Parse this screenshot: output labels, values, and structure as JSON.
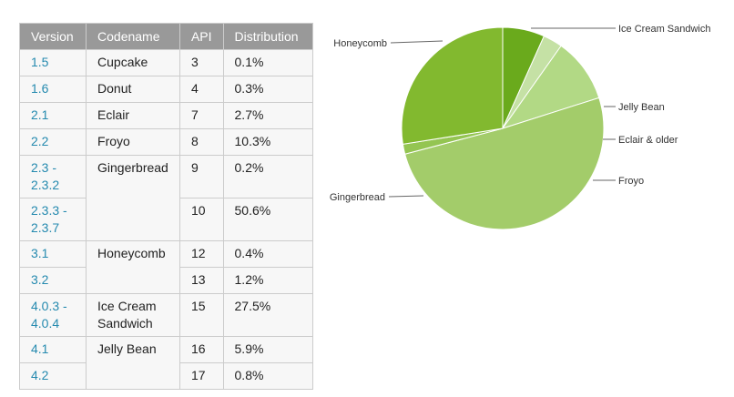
{
  "table": {
    "headers": [
      "Version",
      "Codename",
      "API",
      "Distribution"
    ],
    "rows": [
      {
        "version": "1.5",
        "codename": "Cupcake",
        "api": "3",
        "distribution": "0.1%"
      },
      {
        "version": "1.6",
        "codename": "Donut",
        "api": "4",
        "distribution": "0.3%"
      },
      {
        "version": "2.1",
        "codename": "Eclair",
        "api": "7",
        "distribution": "2.7%"
      },
      {
        "version": "2.2",
        "codename": "Froyo",
        "api": "8",
        "distribution": "10.3%"
      },
      {
        "version": "2.3 - 2.3.2",
        "codename": "Gingerbread",
        "api": "9",
        "distribution": "0.2%"
      },
      {
        "version": "2.3.3 - 2.3.7",
        "codename": "",
        "api": "10",
        "distribution": "50.6%"
      },
      {
        "version": "3.1",
        "codename": "Honeycomb",
        "api": "12",
        "distribution": "0.4%"
      },
      {
        "version": "3.2",
        "codename": "",
        "api": "13",
        "distribution": "1.2%"
      },
      {
        "version": "4.0.3 - 4.0.4",
        "codename": "Ice Cream Sandwich",
        "api": "15",
        "distribution": "27.5%"
      },
      {
        "version": "4.1",
        "codename": "Jelly Bean",
        "api": "16",
        "distribution": "5.9%"
      },
      {
        "version": "4.2",
        "codename": "",
        "api": "17",
        "distribution": "0.8%"
      }
    ]
  },
  "chart_data": {
    "type": "pie",
    "title": "",
    "start_angle_deg": 90,
    "direction": "clockwise",
    "slices": [
      {
        "label": "Jelly Bean",
        "value": 6.7,
        "color": "#6aaa1c"
      },
      {
        "label": "Eclair & older",
        "value": 3.1,
        "color": "#c5e1a5"
      },
      {
        "label": "Froyo",
        "value": 10.3,
        "color": "#b2d985"
      },
      {
        "label": "Gingerbread",
        "value": 50.8,
        "color": "#a3cc6a"
      },
      {
        "label": "Honeycomb",
        "value": 1.6,
        "color": "#94c552"
      },
      {
        "label": "Ice Cream Sandwich",
        "value": 27.5,
        "color": "#82b92f"
      }
    ],
    "label_color": "#333333",
    "leader_color": "#666666"
  }
}
